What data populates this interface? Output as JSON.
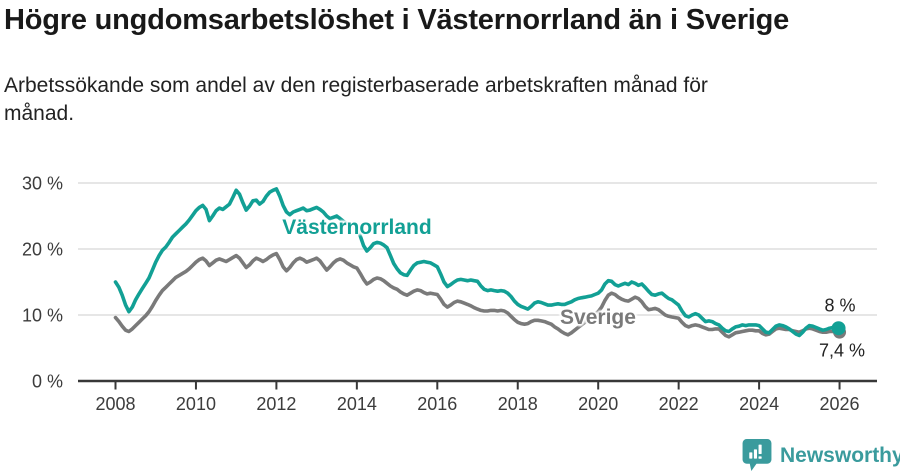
{
  "header": {
    "title": "Högre ungdomsarbetslöshet i Västernorrland än i Sverige",
    "subtitle": "Arbetssökande som andel av den registerbaserade arbetskraften månad för månad."
  },
  "chart_data": {
    "type": "line",
    "title": "Högre ungdomsarbetslöshet i Västernorrland än i Sverige",
    "xlabel": "",
    "ylabel": "",
    "unit": "%",
    "x_start_year": 2008,
    "x_step_months": 1,
    "xlim": [
      2008,
      2026
    ],
    "ylim": [
      0,
      33
    ],
    "y_ticks": [
      0,
      10,
      20,
      30
    ],
    "y_tick_labels": [
      "0 %",
      "10 %",
      "20 %",
      "30 %"
    ],
    "x_tick_labels": [
      "2008",
      "2010",
      "2012",
      "2014",
      "2016",
      "2018",
      "2020",
      "2022",
      "2024",
      "2026"
    ],
    "grid": "horizontal",
    "legend_position": "inline-labels",
    "series": [
      {
        "name": "Sverige",
        "color": "#7a7a7a",
        "end_value_label": "7,4 %",
        "values": [
          9.6,
          9.0,
          8.3,
          7.7,
          7.5,
          7.9,
          8.4,
          8.9,
          9.4,
          9.9,
          10.5,
          11.3,
          12.2,
          13.0,
          13.7,
          14.2,
          14.7,
          15.2,
          15.7,
          16.0,
          16.3,
          16.6,
          17.0,
          17.5,
          18.0,
          18.4,
          18.6,
          18.2,
          17.5,
          17.9,
          18.3,
          18.5,
          18.3,
          18.1,
          18.4,
          18.7,
          19.0,
          18.6,
          17.9,
          17.2,
          17.6,
          18.2,
          18.6,
          18.4,
          18.1,
          18.4,
          18.8,
          19.1,
          19.3,
          18.4,
          17.3,
          16.7,
          17.2,
          17.9,
          18.4,
          18.6,
          18.4,
          18.0,
          18.2,
          18.4,
          18.6,
          18.2,
          17.5,
          16.8,
          17.3,
          17.9,
          18.3,
          18.5,
          18.3,
          17.9,
          17.6,
          17.3,
          17.1,
          16.3,
          15.4,
          14.7,
          15.0,
          15.4,
          15.6,
          15.5,
          15.2,
          14.8,
          14.4,
          14.1,
          13.9,
          13.5,
          13.2,
          13.0,
          13.3,
          13.6,
          13.8,
          13.7,
          13.4,
          13.2,
          13.3,
          13.2,
          13.1,
          12.4,
          11.6,
          11.2,
          11.5,
          11.9,
          12.1,
          12.0,
          11.8,
          11.6,
          11.4,
          11.1,
          10.9,
          10.7,
          10.6,
          10.6,
          10.7,
          10.7,
          10.6,
          10.7,
          10.6,
          10.3,
          9.8,
          9.3,
          8.9,
          8.7,
          8.6,
          8.7,
          9.0,
          9.2,
          9.2,
          9.1,
          9.0,
          8.8,
          8.6,
          8.2,
          7.9,
          7.5,
          7.2,
          7.0,
          7.3,
          7.7,
          8.1,
          8.5,
          8.9,
          9.3,
          9.7,
          10.1,
          10.5,
          11.2,
          12.2,
          13.0,
          13.3,
          13.1,
          12.7,
          12.4,
          12.2,
          12.1,
          12.4,
          12.7,
          12.5,
          12.0,
          11.3,
          10.8,
          10.9,
          11.0,
          10.8,
          10.4,
          10.0,
          9.8,
          9.7,
          9.6,
          9.5,
          8.9,
          8.4,
          8.2,
          8.4,
          8.5,
          8.4,
          8.2,
          8.0,
          7.8,
          7.8,
          7.9,
          7.9,
          7.4,
          6.9,
          6.7,
          7.0,
          7.3,
          7.4,
          7.5,
          7.6,
          7.7,
          7.7,
          7.6,
          7.6,
          7.2,
          7.0,
          7.1,
          7.5,
          7.9,
          8.0,
          7.9,
          7.8,
          7.8,
          7.6,
          7.5,
          7.4,
          7.6,
          7.9,
          8.0,
          7.9,
          7.7,
          7.5,
          7.4,
          7.4,
          7.5,
          7.5,
          7.4,
          7.4
        ]
      },
      {
        "name": "Västernorrland",
        "color": "#12a095",
        "end_value_label": "8 %",
        "values": [
          15.0,
          14.2,
          13.0,
          11.5,
          10.5,
          11.2,
          12.3,
          13.2,
          14.0,
          14.8,
          15.6,
          16.8,
          18.0,
          19.0,
          19.8,
          20.3,
          21.0,
          21.8,
          22.3,
          22.8,
          23.3,
          23.8,
          24.4,
          25.1,
          25.8,
          26.3,
          26.6,
          26.0,
          24.3,
          25.0,
          25.8,
          26.2,
          26.0,
          26.4,
          26.8,
          27.8,
          28.9,
          28.3,
          27.0,
          25.9,
          26.5,
          27.3,
          27.4,
          26.8,
          27.2,
          28.0,
          28.6,
          28.9,
          29.1,
          28.0,
          26.6,
          25.6,
          25.2,
          25.6,
          25.8,
          26.0,
          26.2,
          25.8,
          25.9,
          26.1,
          26.3,
          26.0,
          25.6,
          25.0,
          24.6,
          24.8,
          25.0,
          24.6,
          24.2,
          23.8,
          23.6,
          23.4,
          23.2,
          22.0,
          20.5,
          19.7,
          20.2,
          20.8,
          21.0,
          20.9,
          20.6,
          20.2,
          19.0,
          17.8,
          17.0,
          16.4,
          16.1,
          16.0,
          16.8,
          17.5,
          17.9,
          18.0,
          18.1,
          18.0,
          17.9,
          17.6,
          17.3,
          16.2,
          15.0,
          14.3,
          14.6,
          15.0,
          15.3,
          15.4,
          15.3,
          15.2,
          15.3,
          15.2,
          15.1,
          14.4,
          13.9,
          13.7,
          13.8,
          13.7,
          13.6,
          13.7,
          13.6,
          13.3,
          12.8,
          12.1,
          11.6,
          11.3,
          11.1,
          10.9,
          11.3,
          11.8,
          12.0,
          11.9,
          11.7,
          11.5,
          11.5,
          11.6,
          11.7,
          11.6,
          11.6,
          11.8,
          12.0,
          12.3,
          12.5,
          12.6,
          12.7,
          12.8,
          12.9,
          13.1,
          13.3,
          13.8,
          14.7,
          15.2,
          15.1,
          14.6,
          14.4,
          14.6,
          14.8,
          14.6,
          15.0,
          14.8,
          14.5,
          14.7,
          14.2,
          13.6,
          13.1,
          13.0,
          13.2,
          13.3,
          12.9,
          12.5,
          12.3,
          11.9,
          11.5,
          10.6,
          9.9,
          9.7,
          10.0,
          10.2,
          10.0,
          9.5,
          9.0,
          9.1,
          9.0,
          8.7,
          8.5,
          8.0,
          7.6,
          7.5,
          7.9,
          8.2,
          8.3,
          8.5,
          8.4,
          8.5,
          8.5,
          8.5,
          8.4,
          7.9,
          7.4,
          7.3,
          7.8,
          8.3,
          8.5,
          8.4,
          8.2,
          7.9,
          7.5,
          7.1,
          6.9,
          7.4,
          8.0,
          8.4,
          8.3,
          8.1,
          7.9,
          7.7,
          7.8,
          8.0,
          8.1,
          8.0,
          8.0
        ]
      }
    ],
    "annotations": {
      "end_label_vasternorrland": "8 %",
      "end_label_sverige": "7,4 %"
    }
  },
  "labels": {
    "vasternorrland": "Västernorrland",
    "sverige": "Sverige"
  },
  "footer": {
    "brand": "Newsworthy"
  },
  "colors": {
    "vasternorrland_line": "#12a095",
    "sverige_line": "#7a7a7a",
    "grid": "#dedede",
    "axis": "#383838",
    "tick_text": "#3c3c3c",
    "title_text": "#191919",
    "newsworthy_teal": "#3a9b9d"
  }
}
